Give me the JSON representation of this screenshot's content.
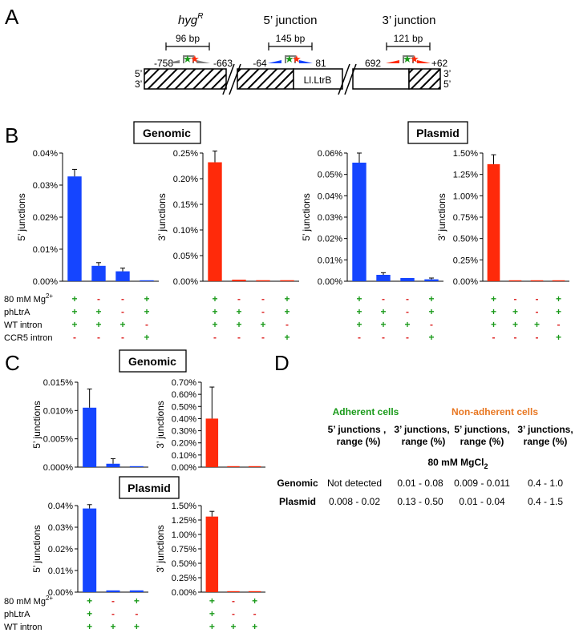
{
  "panels": {
    "A": "A",
    "B": "B",
    "C": "C",
    "D": "D"
  },
  "colors": {
    "blue": "#1545ff",
    "red": "#ff2a0a",
    "green": "#1a9a1a",
    "orange": "#e87722",
    "gray": "#7f7f7f"
  },
  "diagram": {
    "hyg": {
      "label": "hyg",
      "sup": "R",
      "size": "96 bp",
      "left": "-758",
      "right": "-663"
    },
    "j5": {
      "label": "5’ junction",
      "size": "145 bp",
      "left": "-64",
      "right": "81"
    },
    "j3": {
      "label": "3’ junction",
      "size": "121 bp",
      "left": "692",
      "right": "+62"
    },
    "ltrb": "Ll.LtrB",
    "end5_top": "5’",
    "end5_bot": "3’",
    "end3_top": "3’",
    "end3_bot": "5’"
  },
  "labels": {
    "genomic": "Genomic",
    "plasmid": "Plasmid",
    "ylabel5": "5’ junctions",
    "ylabel3": "3’ junctions"
  },
  "conditions_B": {
    "rows": [
      "80 mM Mg2+",
      "phLtrA",
      "WT intron",
      "CCR5 intron"
    ],
    "values": [
      [
        "+",
        "-",
        "-",
        "+"
      ],
      [
        "+",
        "+",
        "-",
        "+"
      ],
      [
        "+",
        "+",
        "+",
        "-"
      ],
      [
        "-",
        "-",
        "-",
        "+"
      ]
    ]
  },
  "conditions_C": {
    "rows": [
      "80 mM Mg2+",
      "phLtrA",
      "WT intron"
    ],
    "values": [
      [
        "+",
        "-",
        "+"
      ],
      [
        "+",
        "-",
        "-"
      ],
      [
        "+",
        "+",
        "+"
      ]
    ]
  },
  "chart_data": [
    {
      "id": "B1",
      "type": "bar",
      "title": "",
      "ylabel": "5’ junctions",
      "color": "blue",
      "ylim": [
        0,
        0.04
      ],
      "ticks": [
        "0.00%",
        "0.01%",
        "0.02%",
        "0.03%",
        "0.04%"
      ],
      "values": [
        0.0327,
        0.0048,
        0.0031,
        0.0002
      ],
      "errors": [
        0.0022,
        0.001,
        0.001,
        0.0001
      ]
    },
    {
      "id": "B2",
      "type": "bar",
      "title": "",
      "ylabel": "3’ junctions",
      "color": "red",
      "ylim": [
        0,
        0.25
      ],
      "ticks": [
        "0.00%",
        "0.05%",
        "0.10%",
        "0.15%",
        "0.20%",
        "0.25%"
      ],
      "values": [
        0.232,
        0.003,
        0.002,
        0.002
      ],
      "errors": [
        0.022,
        0.001,
        0.001,
        0.001
      ]
    },
    {
      "id": "B3",
      "type": "bar",
      "title": "",
      "ylabel": "5’ junctions",
      "color": "blue",
      "ylim": [
        0,
        0.06
      ],
      "ticks": [
        "0.00%",
        "0.01%",
        "0.02%",
        "0.03%",
        "0.04%",
        "0.05%",
        "0.06%"
      ],
      "values": [
        0.0555,
        0.003,
        0.0015,
        0.0009
      ],
      "errors": [
        0.0045,
        0.001,
        0.0004,
        0.0006
      ]
    },
    {
      "id": "B4",
      "type": "bar",
      "title": "",
      "ylabel": "3’ junctions",
      "color": "red",
      "ylim": [
        0,
        1.5
      ],
      "ticks": [
        "0.00%",
        "0.25%",
        "0.50%",
        "0.75%",
        "1.00%",
        "1.25%",
        "1.50%"
      ],
      "values": [
        1.37,
        0.004,
        0.004,
        0.004
      ],
      "errors": [
        0.11,
        0.002,
        0.002,
        0.002
      ]
    },
    {
      "id": "C1",
      "type": "bar",
      "title": "",
      "ylabel": "5’ junctions",
      "color": "blue",
      "ylim": [
        0,
        0.015
      ],
      "ticks": [
        "0.000%",
        "0.005%",
        "0.010%",
        "0.015%"
      ],
      "values": [
        0.0105,
        0.0006,
        0.0001
      ],
      "errors": [
        0.0033,
        0.0009,
        0.0001
      ]
    },
    {
      "id": "C2",
      "type": "bar",
      "title": "",
      "ylabel": "3’ junctions",
      "color": "red",
      "ylim": [
        0,
        0.7
      ],
      "ticks": [
        "0.00%",
        "0.10%",
        "0.20%",
        "0.30%",
        "0.40%",
        "0.50%",
        "0.60%",
        "0.70%"
      ],
      "values": [
        0.4,
        0.002,
        0.002
      ],
      "errors": [
        0.26,
        0.001,
        0.001
      ]
    },
    {
      "id": "C3",
      "type": "bar",
      "title": "",
      "ylabel": "5’ junctions",
      "color": "blue",
      "ylim": [
        0,
        0.045
      ],
      "ticks": [
        "0.00%",
        "0.01%",
        "0.02%",
        "0.03%",
        "0.04%"
      ],
      "values": [
        0.0435,
        0.0009,
        0.0009
      ],
      "errors": [
        0.002,
        0.0005,
        0.0005
      ]
    },
    {
      "id": "C4",
      "type": "bar",
      "title": "",
      "ylabel": "3’ junctions",
      "color": "red",
      "ylim": [
        0,
        1.5
      ],
      "ticks": [
        "0.00%",
        "0.25%",
        "0.50%",
        "0.75%",
        "1.00%",
        "1.25%",
        "1.50%"
      ],
      "values": [
        1.31,
        0.01,
        0.01
      ],
      "errors": [
        0.09,
        0.003,
        0.003
      ]
    }
  ],
  "table": {
    "group1": "Adherent cells",
    "group2": "Non-adherent cells",
    "headers": [
      "5’ junctions , range (%)",
      "3’ junctions, range (%)",
      "5’ junctions, range (%)",
      "3’ junctions, range (%)"
    ],
    "condition": "80 mM MgCl",
    "condition_sub": "2",
    "rows": [
      {
        "label": "Genomic",
        "cells": [
          "Not detected",
          "0.01 - 0.08",
          "0.009 - 0.011",
          "0.4 - 1.0"
        ]
      },
      {
        "label": "Plasmid",
        "cells": [
          "0.008 - 0.02",
          "0.13 - 0.50",
          "0.01 - 0.04",
          "0.4 - 1.5"
        ]
      }
    ]
  }
}
